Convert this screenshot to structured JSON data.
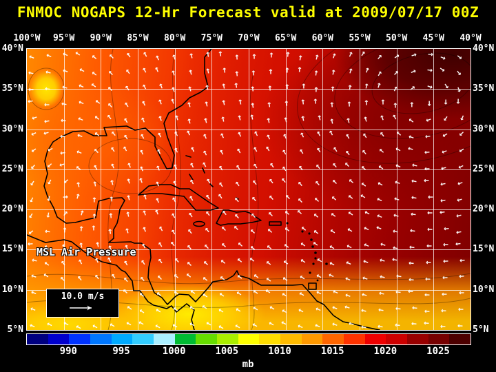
{
  "title": "FNMOC NOGAPS 12-Hr Forecast valid at 2009/07/17 00Z",
  "map": {
    "field_label": "MSL Air Pressure",
    "wind_scale_label": "10.0 m/s",
    "lon_labels": [
      "100°W",
      "95°W",
      "90°W",
      "85°W",
      "80°W",
      "75°W",
      "70°W",
      "65°W",
      "60°W",
      "55°W",
      "50°W",
      "45°W",
      "40°W"
    ],
    "lat_labels": [
      "40°N",
      "35°N",
      "30°N",
      "25°N",
      "20°N",
      "15°N",
      "10°N",
      "5°N"
    ]
  },
  "colorbar": {
    "unit": "mb",
    "min_mb": 986,
    "max_mb": 1028,
    "segment_mb": 2,
    "tick_labels": [
      "990",
      "995",
      "1000",
      "1005",
      "1010",
      "1015",
      "1020",
      "1025"
    ],
    "segment_colors": [
      "#000080",
      "#0000cc",
      "#0033ff",
      "#0077ff",
      "#00aaff",
      "#33ccff",
      "#aaeeff",
      "#00bb33",
      "#66dd00",
      "#aaee00",
      "#ffff00",
      "#ffdd00",
      "#ffbb00",
      "#ff9900",
      "#ff6600",
      "#ff3300",
      "#ee0000",
      "#cc0000",
      "#990000",
      "#770000",
      "#4d0000"
    ]
  },
  "colors": {
    "title": "#ffff00",
    "axis_text": "#ffffff",
    "wind_arrow": "#ffffff",
    "coastline": "#000000",
    "background": "#000000"
  }
}
